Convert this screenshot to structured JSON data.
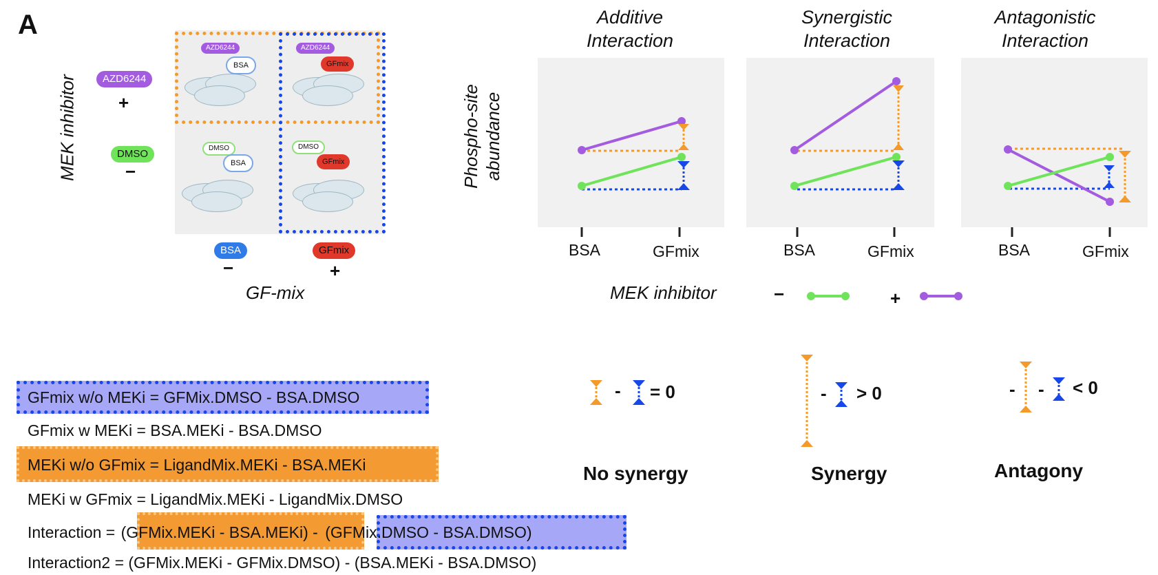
{
  "panel_label": "A",
  "left_diagram": {
    "y_axis_label": "MEK inhibitor",
    "x_axis_label": "GF-mix",
    "row_top": {
      "pill": "AZD6244",
      "sign": "+"
    },
    "row_bottom": {
      "pill": "DMSO",
      "sign": "−"
    },
    "col_left": {
      "pill": "BSA",
      "sign": "−"
    },
    "col_right": {
      "pill": "GFmix",
      "sign": "+"
    },
    "cells": [
      {
        "a": "AZD6244",
        "b": "BSA"
      },
      {
        "a": "AZD6244",
        "b": "GFmix"
      },
      {
        "a": "DMSO",
        "b": "BSA"
      },
      {
        "a": "DMSO",
        "b": "GFmix"
      }
    ]
  },
  "plots": {
    "y_axis_label_line1": "Phospho-site",
    "y_axis_label_line2": "abundance",
    "panels": [
      {
        "title_line1": "Additive",
        "title_line2": "Interaction",
        "x_ticks": [
          "BSA",
          "GFmix"
        ]
      },
      {
        "title_line1": "Synergistic",
        "title_line2": "Interaction",
        "x_ticks": [
          "BSA",
          "GFmix"
        ]
      },
      {
        "title_line1": "Antagonistic",
        "title_line2": "Interaction",
        "x_ticks": [
          "BSA",
          "GFmix"
        ]
      }
    ],
    "legend": {
      "label": "MEK inhibitor",
      "minus": "−",
      "plus": "+"
    },
    "colors": {
      "green": "#6fe35a",
      "purple": "#a35ce0",
      "orange": "#f39a2b",
      "blue": "#1747e8"
    }
  },
  "rules": [
    {
      "expr": "= 0",
      "pre": "-",
      "label": "No synergy"
    },
    {
      "expr": "> 0",
      "pre": "-",
      "label": "Synergy"
    },
    {
      "expr": "< 0",
      "pre": "-",
      "pre2": "-",
      "label": "Antagony"
    }
  ],
  "equations": [
    "GFmix w/o MEKi = GFMix.DMSO - BSA.DMSO",
    "GFmix w MEKi = BSA.MEKi - BSA.DMSO",
    "MEKi w/o GFmix = LigandMix.MEKi - BSA.MEKi",
    "MEKi w GFmix = LigandMix.MEKi - LigandMix.DMSO",
    {
      "prefix": "Interaction = ",
      "part1": "(GFMix.MEKi - BSA.MEKi)",
      "mid": " - ",
      "part2": "(GFMix.DMSO - BSA.DMSO)"
    },
    "Interaction2 = (GFMix.MEKi - GFMix.DMSO) - (BSA.MEKi - BSA.DMSO)"
  ]
}
